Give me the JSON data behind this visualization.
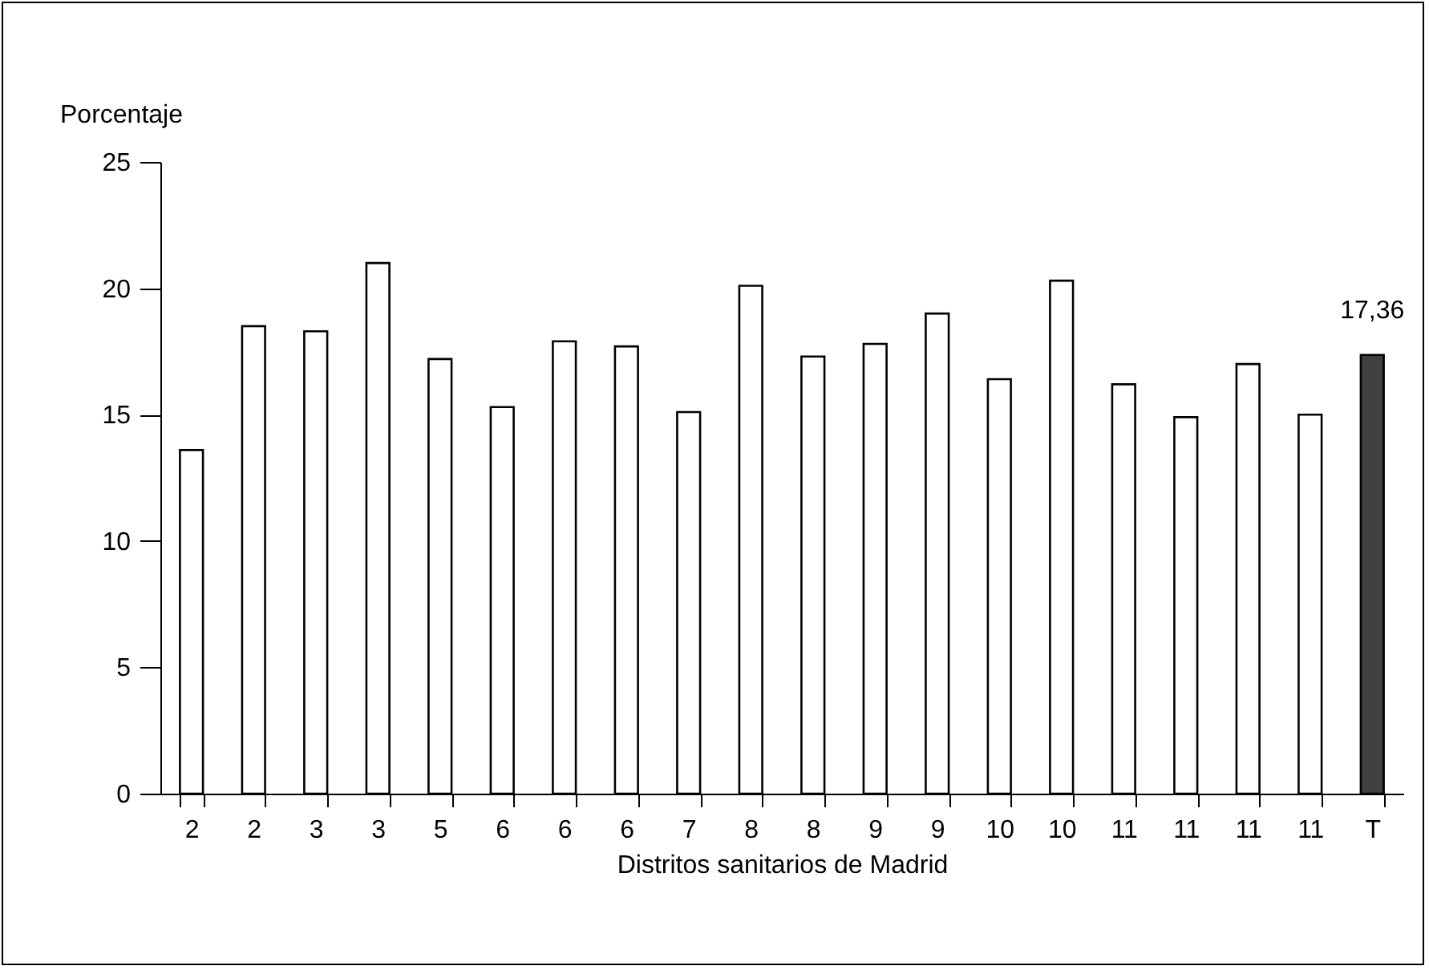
{
  "chart_data": {
    "type": "bar",
    "xlabel": "Distritos sanitarios de Madrid",
    "ylabel": "Porcentaje",
    "categories": [
      "2",
      "2",
      "3",
      "3",
      "5",
      "6",
      "6",
      "6",
      "7",
      "8",
      "8",
      "9",
      "9",
      "10",
      "10",
      "11",
      "11",
      "11",
      "11",
      "T"
    ],
    "values": [
      13.6,
      18.5,
      18.3,
      21.0,
      17.2,
      15.3,
      17.9,
      17.7,
      15.1,
      20.1,
      17.3,
      17.8,
      19.0,
      16.4,
      20.3,
      16.2,
      14.9,
      17.0,
      15.0,
      17.36
    ],
    "colors": [
      "#ffffff",
      "#ffffff",
      "#ffffff",
      "#ffffff",
      "#ffffff",
      "#ffffff",
      "#ffffff",
      "#ffffff",
      "#ffffff",
      "#ffffff",
      "#ffffff",
      "#ffffff",
      "#ffffff",
      "#ffffff",
      "#ffffff",
      "#ffffff",
      "#ffffff",
      "#ffffff",
      "#ffffff",
      "#404040"
    ],
    "value_labels": [
      null,
      null,
      null,
      null,
      null,
      null,
      null,
      null,
      null,
      null,
      null,
      null,
      null,
      null,
      null,
      null,
      null,
      null,
      null,
      "17,36"
    ],
    "ylim": [
      0,
      25
    ],
    "yticks": [
      0,
      5,
      10,
      15,
      20,
      25
    ],
    "grid": false
  }
}
